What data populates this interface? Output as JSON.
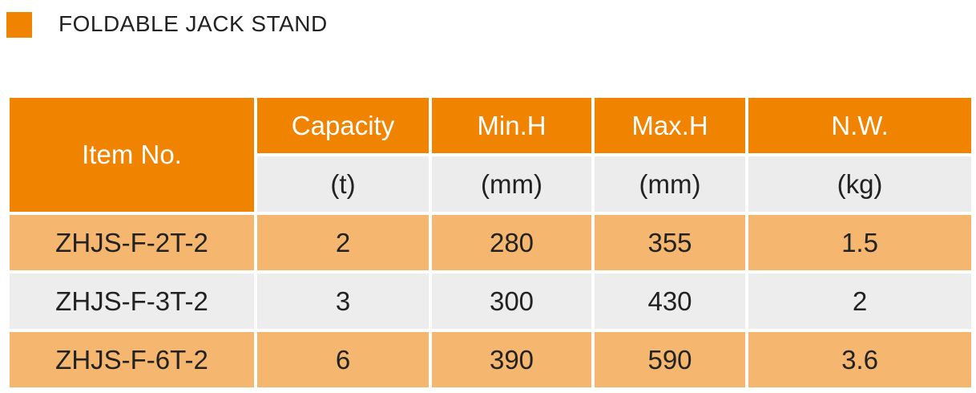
{
  "header": {
    "title": "FOLDABLE JACK STAND"
  },
  "table": {
    "item_header": "Item No.",
    "columns": [
      {
        "name": "Capacity",
        "unit": "(t)"
      },
      {
        "name": "Min.H",
        "unit": "(mm)"
      },
      {
        "name": "Max.H",
        "unit": "(mm)"
      },
      {
        "name": "N.W.",
        "unit": "(kg)"
      }
    ],
    "rows": [
      [
        "ZHJS-F-2T-2",
        "2",
        "280",
        "355",
        "1.5"
      ],
      [
        "ZHJS-F-3T-2",
        "3",
        "300",
        "430",
        "2"
      ],
      [
        "ZHJS-F-6T-2",
        "6",
        "390",
        "590",
        "3.6"
      ]
    ]
  }
}
